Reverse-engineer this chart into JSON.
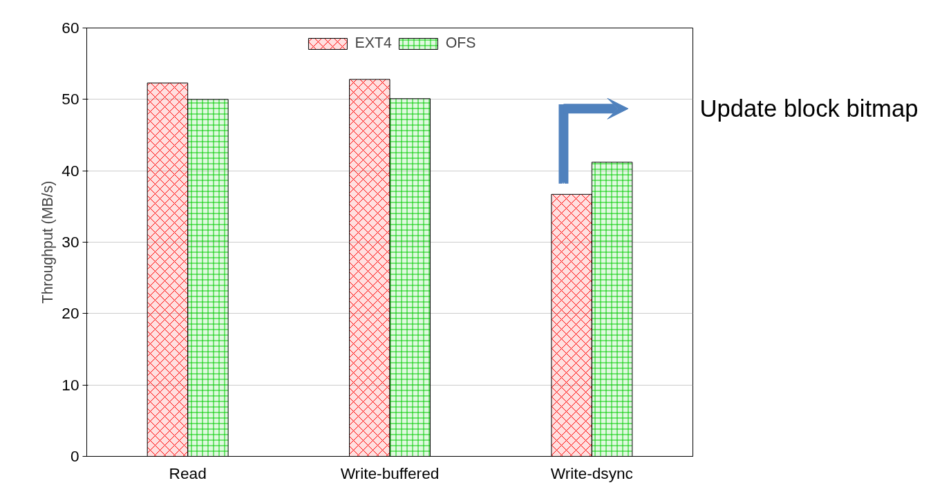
{
  "chart_data": {
    "type": "bar",
    "ylabel": "Throughput (MB/s)",
    "categories": [
      "Read",
      "Write-buffered",
      "Write-dsync"
    ],
    "series": [
      {
        "name": "EXT4",
        "color": "#ff0000",
        "values": [
          52.3,
          52.8,
          36.7
        ]
      },
      {
        "name": "OFS",
        "color": "#00cc00",
        "values": [
          50.0,
          50.1,
          41.2
        ]
      }
    ],
    "ylim": [
      0,
      60
    ],
    "yticks": [
      0,
      10,
      20,
      30,
      40,
      50,
      60
    ],
    "grid": "y",
    "legend": "top",
    "annotations": [
      "Update block bitmap"
    ]
  }
}
